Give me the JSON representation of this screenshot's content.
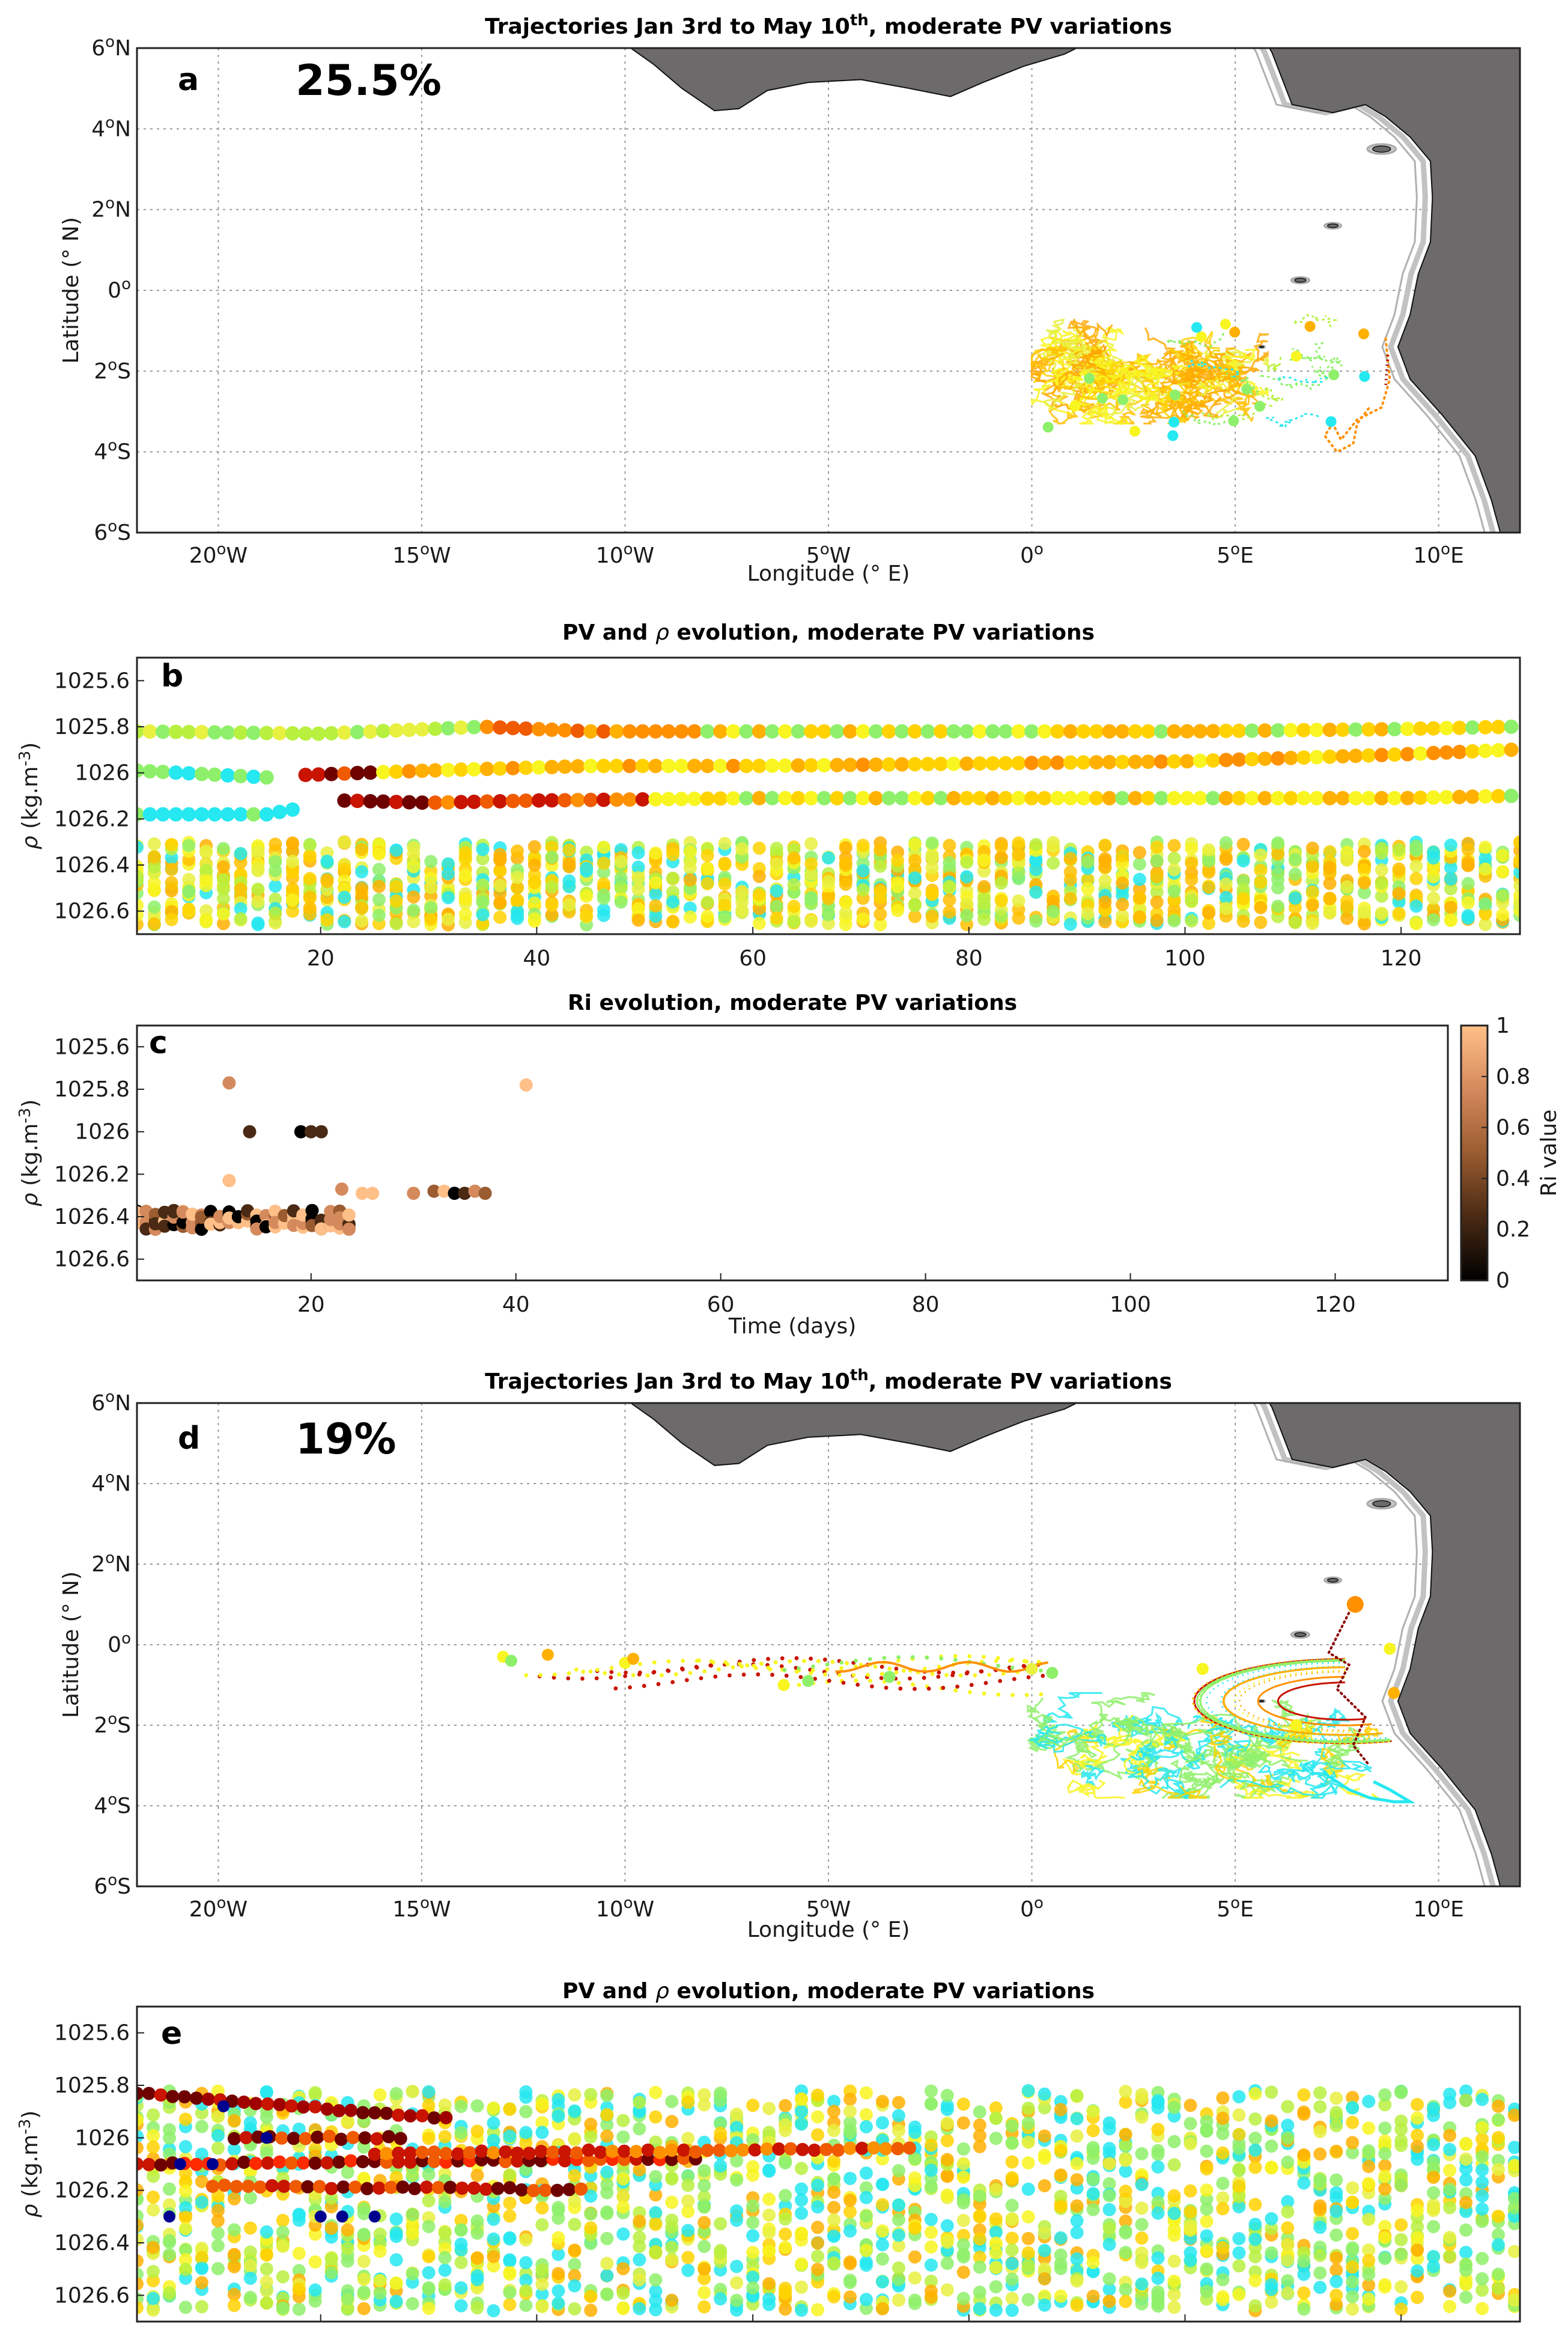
{
  "colors": {
    "land": "#6c6a6a",
    "pv_scale": [
      "#00008f",
      "#1f9bff",
      "#25e8f0",
      "#8ef06a",
      "#f8f520",
      "#ffb000",
      "#f05a00",
      "#c81400",
      "#6e0000"
    ],
    "ri_scale": [
      "#000000",
      "#4a2a14",
      "#9a5c30",
      "#d48a5c",
      "#ffbf88"
    ]
  },
  "panels": {
    "a": {
      "label": "a",
      "title_pre": "Trajectories Jan 3rd to May 10",
      "title_sup": "th",
      "title_post": ",  moderate PV variations",
      "percent": "25.5%"
    },
    "b": {
      "label": "b",
      "title_pre": "PV and ",
      "title_rho": "ρ",
      "title_post": " evolution,  moderate PV variations"
    },
    "c": {
      "label": "c",
      "title": "Ri evolution,  moderate PV variations",
      "colorbar_label": "Ri value",
      "colorbar_ticks": [
        "0",
        "0.2",
        "0.4",
        "0.6",
        "0.8",
        "1"
      ]
    },
    "d": {
      "label": "d",
      "title_pre": "Trajectories Jan 3rd to May 10",
      "title_sup": "th",
      "title_post": ",  moderate PV variations",
      "percent": "19%"
    },
    "e": {
      "label": "e",
      "title_pre": "PV and ",
      "title_rho": "ρ",
      "title_post": " evolution,  moderate PV variations"
    }
  },
  "map_axes": {
    "xlabel": "Longitude (° E)",
    "ylabel": "Latitude (° N)",
    "xticks": [
      {
        "v": -20,
        "n": "20",
        "s": "W"
      },
      {
        "v": -15,
        "n": "15",
        "s": "W"
      },
      {
        "v": -10,
        "n": "10",
        "s": "W"
      },
      {
        "v": -5,
        "n": "5",
        "s": "W"
      },
      {
        "v": 0,
        "n": "0",
        "s": ""
      },
      {
        "v": 5,
        "n": "5",
        "s": "E"
      },
      {
        "v": 10,
        "n": "10",
        "s": "E"
      }
    ],
    "yticks": [
      {
        "v": 6,
        "n": "6",
        "s": "N"
      },
      {
        "v": 4,
        "n": "4",
        "s": "N"
      },
      {
        "v": 2,
        "n": "2",
        "s": "N"
      },
      {
        "v": 0,
        "n": "0",
        "s": ""
      },
      {
        "v": -2,
        "n": "2",
        "s": "S"
      },
      {
        "v": -4,
        "n": "4",
        "s": "S"
      },
      {
        "v": -6,
        "n": "6",
        "s": "S"
      }
    ]
  },
  "density_axes": {
    "ylabel_sym": "ρ",
    "ylabel_unit": "(kg.m",
    "ylabel_exp": "-3",
    "ylabel_close": ")",
    "yticks": [
      "1025.6",
      "1025.8",
      "1026",
      "1026.2",
      "1026.4",
      "1026.6"
    ],
    "xticks": [
      "20",
      "40",
      "60",
      "80",
      "100",
      "120"
    ],
    "time_label": "Time (days)"
  },
  "chart_data": [
    {
      "panel": "a",
      "type": "scatter",
      "title": "Trajectories Jan 3rd to May 10th, moderate PV variations",
      "xlabel": "Longitude (° E)",
      "ylabel": "Latitude (° N)",
      "xlim": [
        -22,
        12
      ],
      "ylim": [
        -6,
        6
      ],
      "annotation": "25.5%",
      "grid": true,
      "trajectory_cluster": {
        "lon_range": [
          -0.1,
          9.0
        ],
        "lat_range": [
          -4.0,
          -0.4
        ],
        "dominant_pv": "yellow-orange"
      }
    },
    {
      "panel": "b",
      "type": "scatter",
      "title": "PV and ρ evolution, moderate PV variations",
      "xlabel": "",
      "ylabel": "ρ (kg.m-3)",
      "xlim": [
        3,
        131
      ],
      "ylim": [
        1026.7,
        1025.5
      ],
      "grid": false,
      "series": [
        {
          "name": "rho 1025.8",
          "x": [
            3,
            20,
            35,
            45,
            60,
            80,
            100,
            120,
            130
          ],
          "y": [
            1025.82,
            1025.83,
            1025.8,
            1025.82,
            1025.82,
            1025.82,
            1025.82,
            1025.81,
            1025.8
          ]
        },
        {
          "name": "rho 1026",
          "x": [
            3,
            15,
            18,
            30,
            45,
            60,
            80,
            100,
            120,
            130
          ],
          "y": [
            1025.99,
            1026.02,
            1026.01,
            1025.99,
            1025.97,
            1025.97,
            1025.96,
            1025.95,
            1025.92,
            1025.9
          ]
        },
        {
          "name": "rho 1026.15",
          "x": [
            3,
            15,
            22,
            30,
            40,
            60,
            80,
            100,
            120,
            130
          ],
          "y": [
            1026.18,
            1026.18,
            1026.12,
            1026.13,
            1026.12,
            1026.11,
            1026.11,
            1026.11,
            1026.11,
            1026.1
          ]
        },
        {
          "name": "dense band",
          "y_range": [
            1026.3,
            1026.66
          ],
          "x_range": [
            3,
            131
          ]
        }
      ]
    },
    {
      "panel": "c",
      "type": "scatter",
      "title": "Ri evolution, moderate PV variations",
      "xlabel": "Time (days)",
      "ylabel": "ρ (kg.m-3)",
      "xlim": [
        3,
        131
      ],
      "ylim": [
        1026.7,
        1025.5
      ],
      "colorbar": {
        "label": "Ri value",
        "range": [
          0,
          1
        ]
      },
      "points": [
        {
          "x": 12,
          "y": 1025.77,
          "ri": 0.6
        },
        {
          "x": 14,
          "y": 1026.0,
          "ri": 0.2
        },
        {
          "x": 12,
          "y": 1026.23,
          "ri": 0.8
        },
        {
          "x": 19,
          "y": 1026.0,
          "ri": 0.1
        },
        {
          "x": 20,
          "y": 1026.0,
          "ri": 0.2
        },
        {
          "x": 21,
          "y": 1026.0,
          "ri": 0.3
        },
        {
          "x": 23,
          "y": 1026.27,
          "ri": 0.7
        },
        {
          "x": 25,
          "y": 1026.29,
          "ri": 0.9
        },
        {
          "x": 26,
          "y": 1026.29,
          "ri": 0.9
        },
        {
          "x": 30,
          "y": 1026.29,
          "ri": 0.7
        },
        {
          "x": 32,
          "y": 1026.28,
          "ri": 0.5
        },
        {
          "x": 33,
          "y": 1026.28,
          "ri": 1.0
        },
        {
          "x": 34,
          "y": 1026.29,
          "ri": 0.1
        },
        {
          "x": 35,
          "y": 1026.29,
          "ri": 0.2
        },
        {
          "x": 36,
          "y": 1026.28,
          "ri": 0.6
        },
        {
          "x": 37,
          "y": 1026.29,
          "ri": 0.5
        },
        {
          "x": 41,
          "y": 1025.78,
          "ri": 1.0
        }
      ],
      "cluster": {
        "x_range": [
          3,
          24
        ],
        "y_range": [
          1026.37,
          1026.46
        ]
      }
    },
    {
      "panel": "d",
      "type": "scatter",
      "title": "Trajectories Jan 3rd to May 10th, moderate PV variations",
      "xlabel": "Longitude (° E)",
      "ylabel": "Latitude (° N)",
      "xlim": [
        -22,
        12
      ],
      "ylim": [
        -6,
        6
      ],
      "annotation": "19%",
      "grid": true,
      "trajectory_cluster": {
        "lon_range": [
          -13.1,
          9.3
        ],
        "lat_range": [
          -4.1,
          1.0
        ],
        "dominant_pv": "cyan-yellow-red"
      }
    },
    {
      "panel": "e",
      "type": "scatter",
      "title": "PV and ρ evolution, moderate PV variations",
      "xlabel": "",
      "ylabel": "ρ (kg.m-3)",
      "xlim": [
        3,
        131
      ],
      "ylim": [
        1026.7,
        1025.5
      ],
      "grid": false,
      "series": [
        {
          "name": "red streak upper",
          "x": [
            3,
            10,
            20,
            30
          ],
          "y": [
            1025.83,
            1025.86,
            1025.89,
            1025.92
          ]
        },
        {
          "name": "red streak middle",
          "x": [
            3,
            20,
            40,
            60
          ],
          "y": [
            1026.1,
            1026.12,
            1026.1,
            1026.06
          ]
        },
        {
          "name": "dense band",
          "y_range": [
            1025.8,
            1026.66
          ],
          "x_range": [
            3,
            131
          ]
        }
      ]
    }
  ]
}
